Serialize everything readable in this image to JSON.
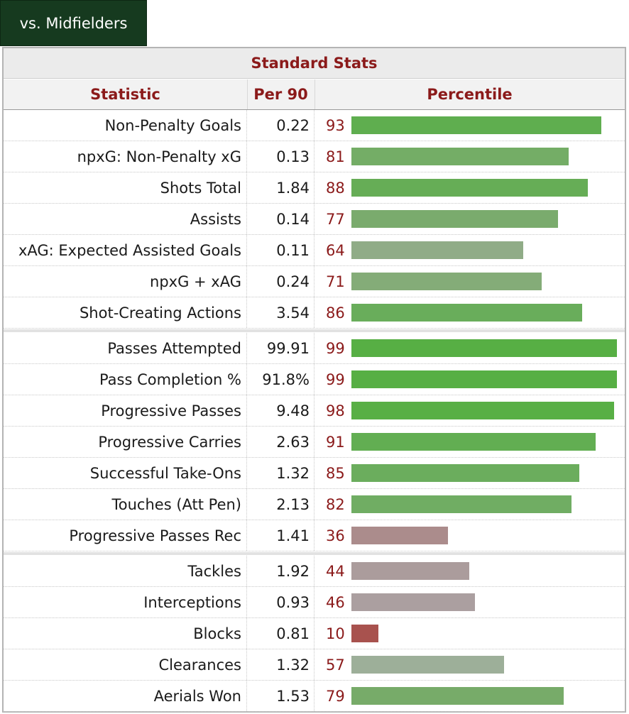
{
  "tab": {
    "label": "vs. Midfielders"
  },
  "header": {
    "title": "Standard Stats"
  },
  "columns": {
    "statistic": "Statistic",
    "per90": "Per 90",
    "percentile": "Percentile"
  },
  "groups": [
    [
      {
        "stat": "Non-Penalty Goals",
        "per90": "0.22",
        "pct": 93,
        "color": "#5fae4f"
      },
      {
        "stat": "npxG: Non-Penalty xG",
        "per90": "0.13",
        "pct": 81,
        "color": "#74ad66"
      },
      {
        "stat": "Shots Total",
        "per90": "1.84",
        "pct": 88,
        "color": "#66ad56"
      },
      {
        "stat": "Assists",
        "per90": "0.14",
        "pct": 77,
        "color": "#7aab6d"
      },
      {
        "stat": "xAG: Expected Assisted Goals",
        "per90": "0.11",
        "pct": 64,
        "color": "#90ac87"
      },
      {
        "stat": "npxG + xAG",
        "per90": "0.24",
        "pct": 71,
        "color": "#84ac78"
      },
      {
        "stat": "Shot-Creating Actions",
        "per90": "3.54",
        "pct": 86,
        "color": "#69ad5b"
      }
    ],
    [
      {
        "stat": "Passes Attempted",
        "per90": "99.91",
        "pct": 99,
        "color": "#57af44"
      },
      {
        "stat": "Pass Completion %",
        "per90": "91.8%",
        "pct": 99,
        "color": "#57af44"
      },
      {
        "stat": "Progressive Passes",
        "per90": "9.48",
        "pct": 98,
        "color": "#58af45"
      },
      {
        "stat": "Progressive Carries",
        "per90": "2.63",
        "pct": 91,
        "color": "#62ae52"
      },
      {
        "stat": "Successful Take-Ons",
        "per90": "1.32",
        "pct": 85,
        "color": "#6bad5d"
      },
      {
        "stat": "Touches (Att Pen)",
        "per90": "2.13",
        "pct": 82,
        "color": "#70ad63"
      },
      {
        "stat": "Progressive Passes Rec",
        "per90": "1.41",
        "pct": 36,
        "color": "#ab8c8c"
      }
    ],
    [
      {
        "stat": "Tackles",
        "per90": "1.92",
        "pct": 44,
        "color": "#ab9c9c"
      },
      {
        "stat": "Interceptions",
        "per90": "0.93",
        "pct": 46,
        "color": "#ab9fa0"
      },
      {
        "stat": "Blocks",
        "per90": "0.81",
        "pct": 10,
        "color": "#a8524e"
      },
      {
        "stat": "Clearances",
        "per90": "1.32",
        "pct": 57,
        "color": "#9daf99"
      },
      {
        "stat": "Aerials Won",
        "per90": "1.53",
        "pct": 79,
        "color": "#77ab69"
      }
    ]
  ]
}
